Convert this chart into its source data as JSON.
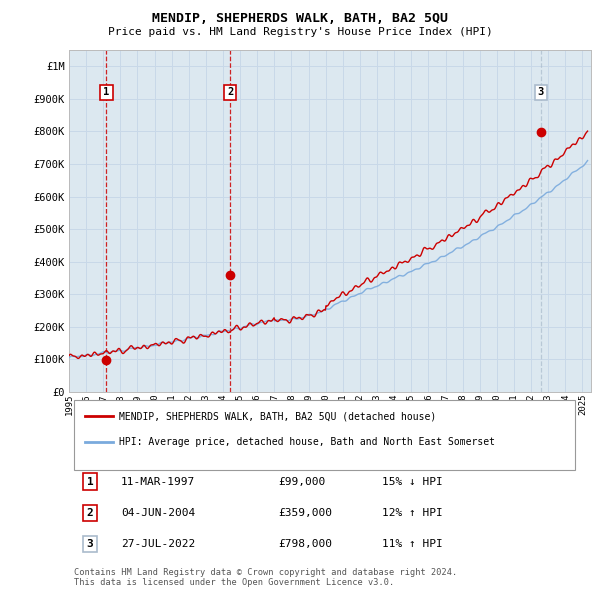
{
  "title": "MENDIP, SHEPHERDS WALK, BATH, BA2 5QU",
  "subtitle": "Price paid vs. HM Land Registry's House Price Index (HPI)",
  "ylim": [
    0,
    1050000
  ],
  "yticks": [
    0,
    100000,
    200000,
    300000,
    400000,
    500000,
    600000,
    700000,
    800000,
    900000,
    1000000
  ],
  "ytick_labels": [
    "£0",
    "£100K",
    "£200K",
    "£300K",
    "£400K",
    "£500K",
    "£600K",
    "£700K",
    "£800K",
    "£900K",
    "£1M"
  ],
  "xlim_start": 1995.0,
  "xlim_end": 2025.5,
  "xtick_years": [
    1995,
    1996,
    1997,
    1998,
    1999,
    2000,
    2001,
    2002,
    2003,
    2004,
    2005,
    2006,
    2007,
    2008,
    2009,
    2010,
    2011,
    2012,
    2013,
    2014,
    2015,
    2016,
    2017,
    2018,
    2019,
    2020,
    2021,
    2022,
    2023,
    2024,
    2025
  ],
  "grid_color": "#c8d8e8",
  "plot_bg_color": "#dce8f0",
  "fig_bg_color": "#ffffff",
  "hpi_color": "#7aaadd",
  "price_color": "#cc0000",
  "sale_marker_color": "#cc0000",
  "sale1_line_color": "#cc0000",
  "sale2_line_color": "#cc0000",
  "sale3_line_color": "#aabbcc",
  "sale1_x": 1997.19,
  "sale1_y": 99000,
  "sale2_x": 2004.42,
  "sale2_y": 359000,
  "sale3_x": 2022.56,
  "sale3_y": 798000,
  "legend_label_red": "MENDIP, SHEPHERDS WALK, BATH, BA2 5QU (detached house)",
  "legend_label_blue": "HPI: Average price, detached house, Bath and North East Somerset",
  "table_rows": [
    [
      "1",
      "11-MAR-1997",
      "£99,000",
      "15% ↓ HPI"
    ],
    [
      "2",
      "04-JUN-2004",
      "£359,000",
      "12% ↑ HPI"
    ],
    [
      "3",
      "27-JUL-2022",
      "£798,000",
      "11% ↑ HPI"
    ]
  ],
  "footnote": "Contains HM Land Registry data © Crown copyright and database right 2024.\nThis data is licensed under the Open Government Licence v3.0."
}
